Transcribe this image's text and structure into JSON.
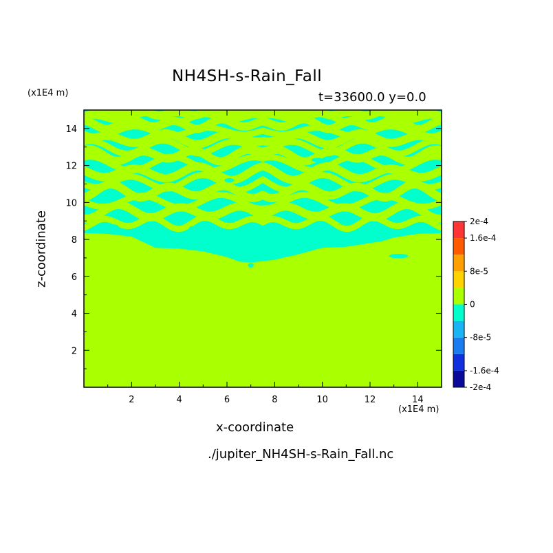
{
  "chart_data": {
    "type": "heatmap",
    "title": "NH4SH-s-Rain_Fall",
    "subtitle": "t=33600.0 y=0.0",
    "xlabel": "x-coordinate",
    "ylabel": "z-coordinate",
    "x_unit": "(x1E4 m)",
    "y_unit": "(x1E4 m)",
    "filename": "./jupiter_NH4SH-s-Rain_Fall.nc",
    "xlim": [
      0.0,
      15.0
    ],
    "ylim": [
      0.0,
      15.0
    ],
    "xticks": [
      2,
      4,
      6,
      8,
      10,
      12,
      14
    ],
    "yticks": [
      2,
      4,
      6,
      8,
      10,
      12,
      14
    ],
    "colorbar": {
      "levels": [
        -0.0002,
        -0.00016,
        -0.00012,
        -8e-05,
        -4e-05,
        0,
        4e-05,
        8e-05,
        0.00012,
        0.00016,
        0.0002
      ],
      "colors": [
        "#0a0a9a",
        "#1030e0",
        "#1a7cf0",
        "#1ab4f5",
        "#00ffcc",
        "#aaff00",
        "#ffd200",
        "#ffa000",
        "#ff5a00",
        "#ff3434"
      ],
      "tick_labels": [
        {
          "value": 0.0002,
          "label": "2e-4"
        },
        {
          "value": 0.00016,
          "label": "1.6e-4"
        },
        {
          "value": 8e-05,
          "label": "8e-5"
        },
        {
          "value": 0,
          "label": "0"
        },
        {
          "value": -8e-05,
          "label": "-8e-5"
        },
        {
          "value": -0.00016,
          "label": "-1.6e-4"
        },
        {
          "value": -0.0002,
          "label": "-2e-4"
        }
      ]
    },
    "background_band": "0 to 4e-5",
    "field_band": "-4e-5 to 0",
    "field_region_z": [
      6.5,
      15.0
    ],
    "band_lines": [
      {
        "z": 14.85,
        "amp": 0.12,
        "wl": 1.6
      },
      {
        "z": 14.6,
        "amp": 0.18,
        "wl": 2.3
      },
      {
        "z": 14.25,
        "amp": 0.2,
        "wl": 1.9
      },
      {
        "z": 13.85,
        "amp": 0.25,
        "wl": 3.1
      },
      {
        "z": 13.45,
        "amp": 0.22,
        "wl": 2.5
      },
      {
        "z": 13.0,
        "amp": 0.28,
        "wl": 2.9
      },
      {
        "z": 12.55,
        "amp": 0.25,
        "wl": 2.2
      },
      {
        "z": 12.1,
        "amp": 0.3,
        "wl": 3.4
      },
      {
        "z": 11.6,
        "amp": 0.3,
        "wl": 2.7
      },
      {
        "z": 11.1,
        "amp": 0.32,
        "wl": 3.0
      },
      {
        "z": 10.6,
        "amp": 0.3,
        "wl": 2.4
      },
      {
        "z": 10.05,
        "amp": 0.32,
        "wl": 3.3
      },
      {
        "z": 9.5,
        "amp": 0.3,
        "wl": 2.6
      },
      {
        "z": 8.9,
        "amp": 0.25,
        "wl": 2.1
      }
    ],
    "lower_boundary": [
      [
        0.0,
        8.35
      ],
      [
        1.0,
        8.3
      ],
      [
        2.0,
        8.15
      ],
      [
        2.5,
        7.85
      ],
      [
        3.0,
        7.55
      ],
      [
        4.0,
        7.5
      ],
      [
        5.0,
        7.35
      ],
      [
        6.0,
        7.05
      ],
      [
        6.5,
        6.8
      ],
      [
        7.0,
        6.75
      ],
      [
        8.0,
        6.9
      ],
      [
        9.0,
        7.2
      ],
      [
        10.0,
        7.55
      ],
      [
        11.0,
        7.6
      ],
      [
        12.0,
        7.8
      ],
      [
        12.5,
        7.9
      ],
      [
        13.0,
        8.1
      ],
      [
        14.0,
        8.3
      ],
      [
        15.0,
        8.35
      ]
    ],
    "blobs": [
      {
        "x": 1.2,
        "z": 8.7,
        "rx": 0.25,
        "rz": 0.12
      },
      {
        "x": 4.6,
        "z": 8.6,
        "rx": 0.2,
        "rz": 0.12
      },
      {
        "x": 7.0,
        "z": 6.6,
        "rx": 0.12,
        "rz": 0.12
      },
      {
        "x": 8.9,
        "z": 7.3,
        "rx": 0.15,
        "rz": 0.12
      },
      {
        "x": 13.2,
        "z": 7.1,
        "rx": 0.4,
        "rz": 0.12
      },
      {
        "x": 6.1,
        "z": 11.2,
        "rx": 0.2,
        "rz": 0.12
      },
      {
        "x": 9.8,
        "z": 12.3,
        "rx": 0.25,
        "rz": 0.12
      }
    ]
  }
}
